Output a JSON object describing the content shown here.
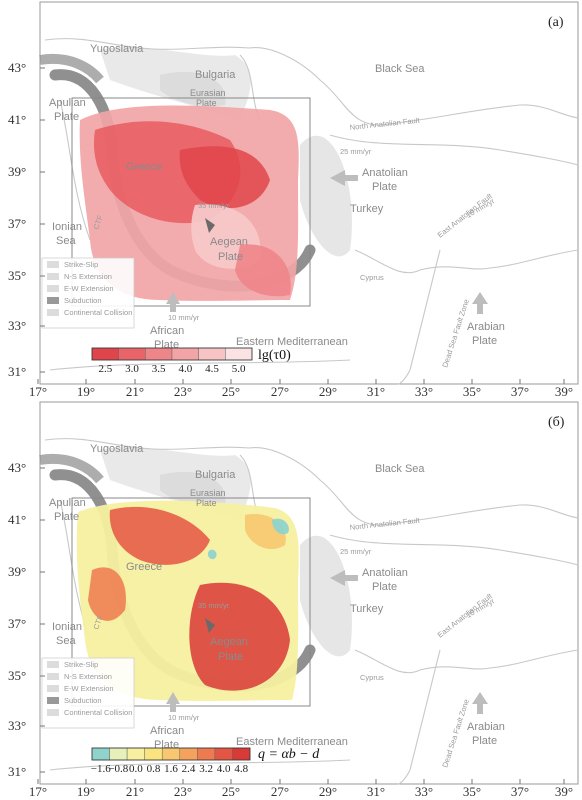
{
  "panels": [
    {
      "id": "a",
      "label": "(a)",
      "colorbar": {
        "title": "lg(τ0)",
        "ticks": [
          "2.5",
          "3.0",
          "3.5",
          "4.0",
          "4.5",
          "5.0"
        ],
        "colors": [
          "#e0454b",
          "#e86469",
          "#ee8589",
          "#f3a4a6",
          "#f7c4c5",
          "#fbe3e3"
        ]
      }
    },
    {
      "id": "b",
      "label": "(б)",
      "colorbar": {
        "title": "q = αb − d",
        "ticks": [
          "−1.6",
          "−0.8",
          "0.0",
          "0.8",
          "1.6",
          "2.4",
          "3.2",
          "4.0",
          "4.8"
        ],
        "colors": [
          "#8fd3cc",
          "#e6f0b8",
          "#f6f0a0",
          "#f9e47f",
          "#f8c770",
          "#f4a25e",
          "#ee7a4f",
          "#e55543",
          "#d93a36"
        ]
      }
    }
  ],
  "map": {
    "lat_labels": [
      "43°",
      "41°",
      "39°",
      "37°",
      "35°",
      "33°",
      "31°"
    ],
    "lon_labels": [
      "17°",
      "19°",
      "21°",
      "23°",
      "25°",
      "27°",
      "29°",
      "31°",
      "33°",
      "35°",
      "37°",
      "39°"
    ],
    "place_labels": {
      "yugoslavia": "Yugoslavia",
      "bulgaria": "Bulgaria",
      "black_sea": "Black Sea",
      "apulian_plate_1": "Apulian",
      "apulian_plate_2": "Plate",
      "eurasian_plate_1": "Eurasian",
      "eurasian_plate_2": "Plate",
      "greece": "Greece",
      "ionian_sea_1": "Ionian",
      "ionian_sea_2": "Sea",
      "aegean_plate_1": "Aegean",
      "aegean_plate_2": "Plate",
      "anatolian_plate_1": "Anatolian",
      "anatolian_plate_2": "Plate",
      "turkey": "Turkey",
      "naf": "North Anatolian Fault",
      "eaf": "East Anatolian Fault",
      "dsfz": "Dead Sea Fault Zone",
      "rate_25": "25 mm/yr",
      "rate_35": "35 mm/yr",
      "rate_10a": "10 mm/yr",
      "rate_10b": "10 mm/yr",
      "cyprus": "Cyprus",
      "ctf": "CTF",
      "african_plate_1": "African",
      "african_plate_2": "Plate",
      "eastern_med": "Eastern Mediterranean",
      "arabian_plate_1": "Arabian",
      "arabian_plate_2": "Plate"
    },
    "legend_items": [
      "Strike-Slip",
      "N-S Extension",
      "E-W Extension",
      "Subduction",
      "Continental Collision"
    ]
  }
}
